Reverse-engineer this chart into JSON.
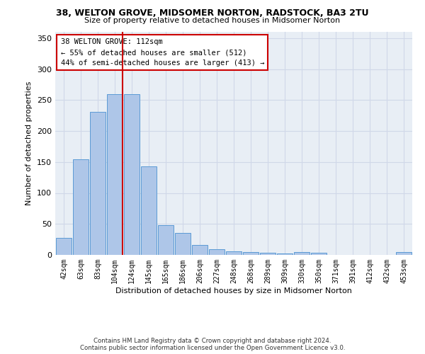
{
  "title": "38, WELTON GROVE, MIDSOMER NORTON, RADSTOCK, BA3 2TU",
  "subtitle": "Size of property relative to detached houses in Midsomer Norton",
  "xlabel": "Distribution of detached houses by size in Midsomer Norton",
  "ylabel": "Number of detached properties",
  "footer": "Contains HM Land Registry data © Crown copyright and database right 2024.\nContains public sector information licensed under the Open Government Licence v3.0.",
  "bins": [
    "42sqm",
    "63sqm",
    "83sqm",
    "104sqm",
    "124sqm",
    "145sqm",
    "165sqm",
    "186sqm",
    "206sqm",
    "227sqm",
    "248sqm",
    "268sqm",
    "289sqm",
    "309sqm",
    "330sqm",
    "350sqm",
    "371sqm",
    "391sqm",
    "412sqm",
    "432sqm",
    "453sqm"
  ],
  "values": [
    28,
    154,
    231,
    260,
    260,
    143,
    48,
    35,
    16,
    9,
    6,
    5,
    4,
    2,
    5,
    3,
    0,
    0,
    0,
    0,
    5
  ],
  "bar_color": "#aec6e8",
  "bar_edge_color": "#5b9bd5",
  "grid_color": "#d0d8e8",
  "background_color": "#e8eef5",
  "vline_x_index": 3,
  "vline_color": "#cc0000",
  "annotation_box_text": "38 WELTON GROVE: 112sqm\n← 55% of detached houses are smaller (512)\n44% of semi-detached houses are larger (413) →",
  "ylim": [
    0,
    360
  ],
  "yticks": [
    0,
    50,
    100,
    150,
    200,
    250,
    300,
    350
  ]
}
